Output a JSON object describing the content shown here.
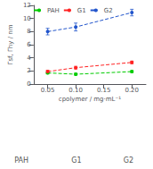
{
  "chart_data": {
    "type": "line",
    "xlabel": "cpolymer / mg·mL⁻¹",
    "ylabel": "Γsf, Γhy / nm",
    "x": [
      0.05,
      0.1,
      0.2
    ],
    "xlim": [
      0.025,
      0.225
    ],
    "xticks": [
      {
        "value": 0.05,
        "label": "0.05"
      },
      {
        "value": 0.1,
        "label": "0.10"
      },
      0.15,
      {
        "value": 0.2,
        "label": "0.20"
      }
    ],
    "ylim": [
      0,
      12
    ],
    "yticks": [
      0,
      2,
      4,
      6,
      8,
      10,
      12
    ],
    "grid": false,
    "legend": "upper left",
    "series": [
      {
        "name": "PAH",
        "color": "#00cc00",
        "values": [
          1.7,
          1.5,
          1.9
        ],
        "yerr": [
          0.15,
          0.15,
          0.15
        ],
        "marker": "circle",
        "line_style": "dashed"
      },
      {
        "name": "G1",
        "color": "#ff2222",
        "values": [
          1.9,
          2.5,
          3.3
        ],
        "yerr": [
          0.2,
          0.2,
          0.2
        ],
        "marker": "circle",
        "line_style": "dashed"
      },
      {
        "name": "G2",
        "color": "#2255cc",
        "values": [
          8.0,
          8.7,
          10.9
        ],
        "yerr": [
          0.5,
          0.6,
          0.5
        ],
        "marker": "circle",
        "line_style": "dashed"
      }
    ],
    "annotations": [
      "PAH",
      "G1",
      "G2"
    ]
  }
}
